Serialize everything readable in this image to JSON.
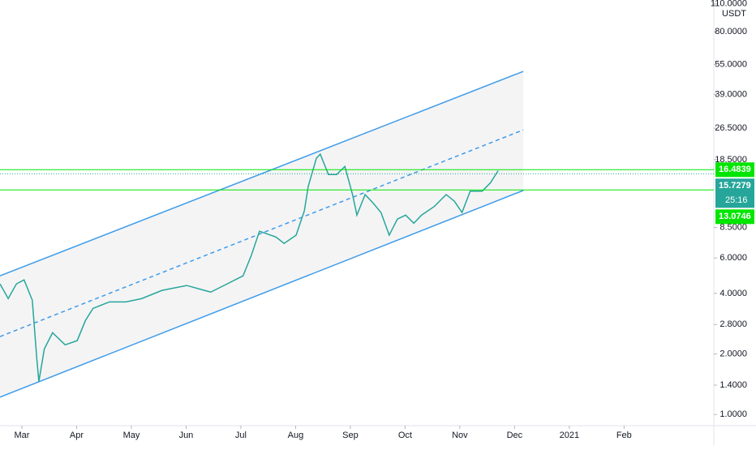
{
  "chart_data": {
    "type": "line",
    "unit_label": "USDT",
    "log_scale": true,
    "x": [
      -0.4,
      -0.25,
      -0.1,
      0.04,
      0.19,
      0.27,
      0.31,
      0.41,
      0.56,
      0.79,
      1.01,
      1.16,
      1.3,
      1.6,
      1.9,
      2.19,
      2.56,
      3.01,
      3.45,
      3.75,
      4.04,
      4.19,
      4.34,
      4.64,
      4.79,
      5.01,
      5.16,
      5.23,
      5.38,
      5.45,
      5.6,
      5.75,
      5.9,
      6.04,
      6.12,
      6.27,
      6.41,
      6.56,
      6.71,
      6.86,
      7.01,
      7.16,
      7.3,
      7.53,
      7.75,
      7.9,
      8.04,
      8.19,
      8.41,
      8.56,
      8.7
    ],
    "values": [
      4.46,
      3.77,
      4.46,
      4.67,
      3.7,
      1.93,
      1.46,
      2.12,
      2.55,
      2.22,
      2.33,
      2.93,
      3.37,
      3.63,
      3.63,
      3.77,
      4.14,
      4.38,
      4.06,
      4.46,
      4.89,
      6.17,
      8.15,
      7.63,
      7.09,
      7.79,
      10.3,
      13.6,
      18.8,
      19.7,
      15.6,
      15.6,
      17.1,
      12.4,
      9.8,
      12.4,
      11.3,
      10.1,
      7.79,
      9.37,
      9.8,
      8.93,
      9.8,
      10.8,
      12.4,
      11.5,
      10.1,
      12.9,
      12.9,
      14.2,
      16.3
    ],
    "color": "#26a69a",
    "xlim": [
      -0.4,
      12.64
    ],
    "xticks": [
      {
        "value": 0,
        "label": "Mar"
      },
      {
        "value": 1,
        "label": "Apr"
      },
      {
        "value": 2,
        "label": "May"
      },
      {
        "value": 3,
        "label": "Jun"
      },
      {
        "value": 4,
        "label": "Jul"
      },
      {
        "value": 5,
        "label": "Aug"
      },
      {
        "value": 6,
        "label": "Sep"
      },
      {
        "value": 7,
        "label": "Oct"
      },
      {
        "value": 8,
        "label": "Nov"
      },
      {
        "value": 9,
        "label": "Dec"
      },
      {
        "value": 10,
        "label": "2021"
      },
      {
        "value": 11,
        "label": "Feb"
      }
    ],
    "ylim": [
      0.88,
      115
    ],
    "yticks": [
      {
        "value": 1,
        "label": "1.0000"
      },
      {
        "value": 1.4,
        "label": "1.4000"
      },
      {
        "value": 2,
        "label": "2.0000"
      },
      {
        "value": 2.8,
        "label": "2.8000"
      },
      {
        "value": 4,
        "label": "4.0000"
      },
      {
        "value": 6,
        "label": "6.0000"
      },
      {
        "value": 8.5,
        "label": "8.5000"
      },
      {
        "value": 18.5,
        "label": "18.5000"
      },
      {
        "value": 26.5,
        "label": "26.5000"
      },
      {
        "value": 39,
        "label": "39.0000"
      },
      {
        "value": 55,
        "label": "55.0000"
      },
      {
        "value": 80,
        "label": "80.0000"
      },
      {
        "value": 110,
        "label": "110.0000"
      }
    ],
    "trendlines": [
      {
        "x": [
          -0.4,
          9.16
        ],
        "values": [
          4.89,
          50.8
        ],
        "color": "#3d9be9",
        "dashed": false
      },
      {
        "x": [
          -0.4,
          9.16
        ],
        "values": [
          2.44,
          26.0
        ],
        "color": "#3d9be9",
        "dashed": true
      },
      {
        "x": [
          -0.4,
          9.16
        ],
        "values": [
          1.22,
          13.0
        ],
        "color": "#3d9be9",
        "dashed": false
      }
    ],
    "levels": [
      {
        "value": 16.4839,
        "label": "16.4839",
        "color": "#00e600",
        "line": true
      },
      {
        "value": 15.7279,
        "label": "15.7279",
        "color": "#26a69a",
        "line": false,
        "countdown": "25:16"
      },
      {
        "value": 13.0746,
        "label": "13.0746",
        "color": "#00e600",
        "line": true
      }
    ]
  }
}
